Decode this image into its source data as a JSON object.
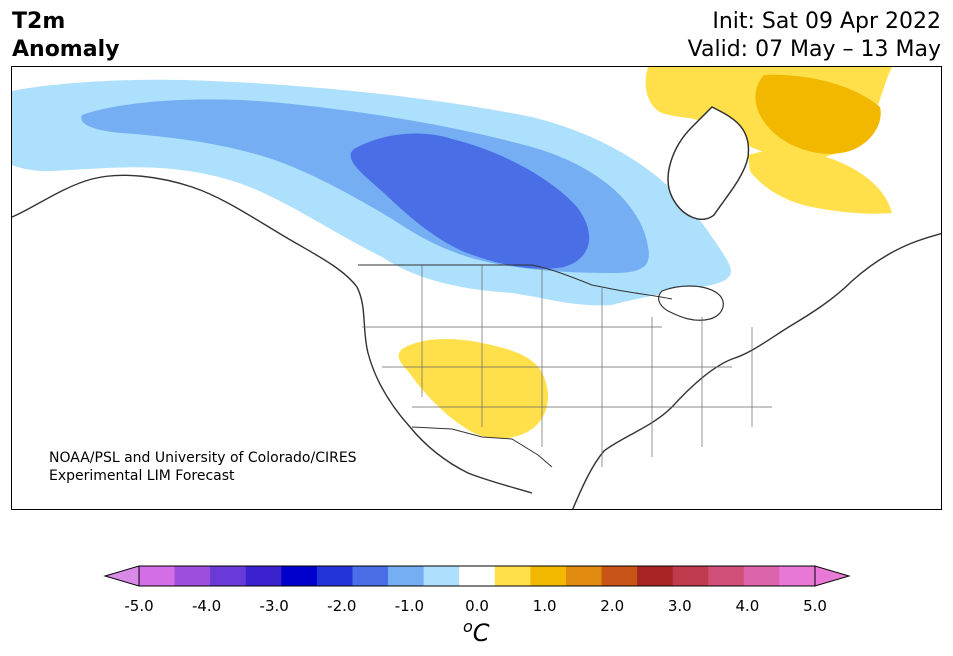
{
  "title": {
    "left_line1": "T2m",
    "left_line2": "Anomaly",
    "init": "Init: Sat 09 Apr 2022",
    "valid": "Valid: 07 May – 13 May"
  },
  "credit": {
    "line1": "NOAA/PSL and University of Colorado/CIRES",
    "line2": "Experimental LIM Forecast"
  },
  "colorbar": {
    "unit_symbol": "o",
    "unit_letter": "C",
    "ticks": [
      "-5.0",
      "-4.0",
      "-3.0",
      "-2.0",
      "-1.0",
      "0.0",
      "1.0",
      "2.0",
      "3.0",
      "4.0",
      "5.0"
    ],
    "tick_values": [
      -5,
      -4,
      -3,
      -2,
      -1,
      0,
      1,
      2,
      3,
      4,
      5
    ],
    "levels": [
      -5.0,
      -4.5,
      -4.0,
      -3.5,
      -3.0,
      -2.5,
      -2.0,
      -1.5,
      -1.0,
      -0.5,
      0.5,
      1.0,
      1.5,
      2.0,
      2.5,
      3.0,
      3.5,
      4.0,
      4.5,
      5.0
    ],
    "under_color": "#d88ae6",
    "over_color": "#e87ad6",
    "colors": [
      "#d36ee6",
      "#9b4fdc",
      "#6a3ad8",
      "#3a22cf",
      "#0000cc",
      "#2233d9",
      "#4a6ee6",
      "#75aef2",
      "#ade0fc",
      "#ffffff",
      "#ffe04a",
      "#f2b800",
      "#e08a10",
      "#c95418",
      "#a82424",
      "#c03a4e",
      "#d0507a",
      "#dc64aa",
      "#e878d6"
    ]
  },
  "map_colors": {
    "anom_neg_1": "#ade0fc",
    "anom_neg_15": "#75aef2",
    "anom_neg_2": "#4a6ee6",
    "anom_pos_05": "#ffe04a",
    "anom_pos_1": "#f2b800",
    "coast": "#333333",
    "water": "#ffffff"
  }
}
